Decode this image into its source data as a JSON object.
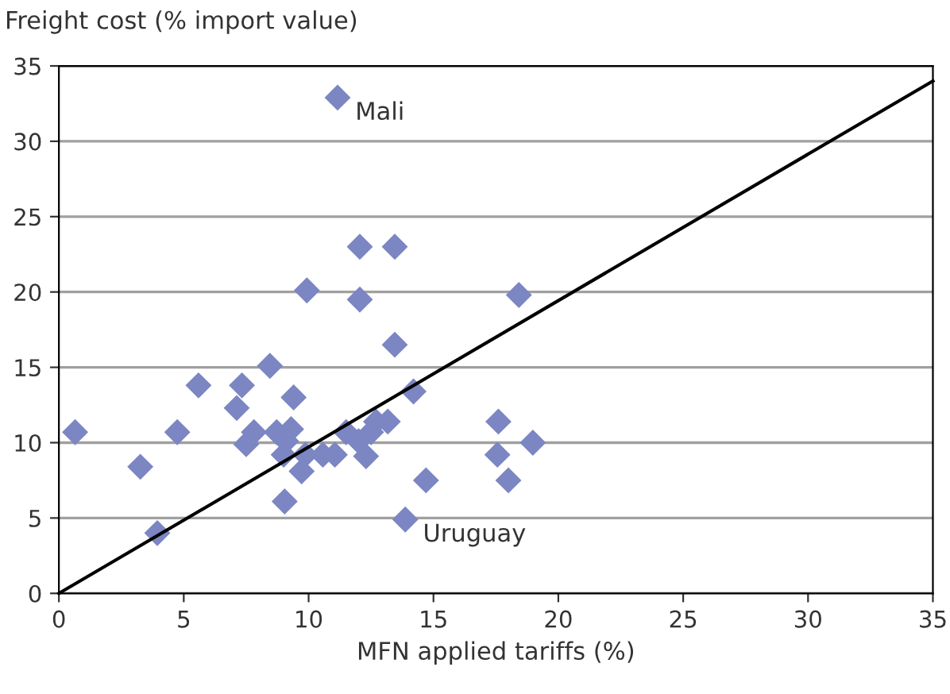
{
  "chart_data": {
    "type": "scatter",
    "ylabel": "Freight cost (% import value)",
    "xlabel": "MFN applied tariffs (%)",
    "series": [
      {
        "color": "#7b86c2",
        "marker": "diamond",
        "x": [
          0.65,
          3.26,
          3.94,
          4.74,
          5.59,
          7.12,
          7.33,
          7.5,
          7.81,
          8.45,
          8.72,
          9.0,
          9.1,
          9.3,
          9.4,
          9.04,
          9.72,
          9.87,
          9.93,
          10.57,
          11.05,
          11.5,
          12.05,
          12.05,
          12.0,
          12.3,
          12.5,
          12.7,
          13.17,
          13.45,
          13.45,
          11.16,
          14.2,
          18.42,
          17.6,
          17.56,
          18.0,
          18.98,
          14.7,
          13.87
        ],
        "values": [
          10.7,
          8.4,
          4.0,
          10.7,
          13.8,
          12.3,
          13.8,
          9.9,
          10.7,
          15.1,
          10.7,
          9.2,
          10.1,
          10.9,
          13.0,
          6.1,
          8.1,
          9.2,
          20.1,
          9.2,
          9.2,
          10.7,
          23.0,
          19.5,
          10.1,
          9.1,
          10.7,
          11.4,
          11.4,
          23.0,
          16.5,
          32.9,
          13.4,
          19.8,
          11.4,
          9.2,
          7.5,
          10.0,
          7.5,
          4.9
        ]
      },
      {
        "type": "line",
        "color": "#000000",
        "marker": "none",
        "x": [
          0,
          35
        ],
        "values": [
          0,
          34
        ]
      }
    ],
    "xlim": [
      0,
      35
    ],
    "ylim": [
      0,
      35
    ],
    "xticks": [
      0,
      5,
      10,
      15,
      20,
      25,
      30,
      35
    ],
    "yticks": [
      0,
      5,
      10,
      15,
      20,
      25,
      30,
      35
    ],
    "grid": "y",
    "legend": false,
    "annotations": [
      {
        "text": "Mali",
        "x": 11.16,
        "y": 32.9
      },
      {
        "text": "Uruguay",
        "x": 13.87,
        "y": 4.9
      }
    ]
  }
}
